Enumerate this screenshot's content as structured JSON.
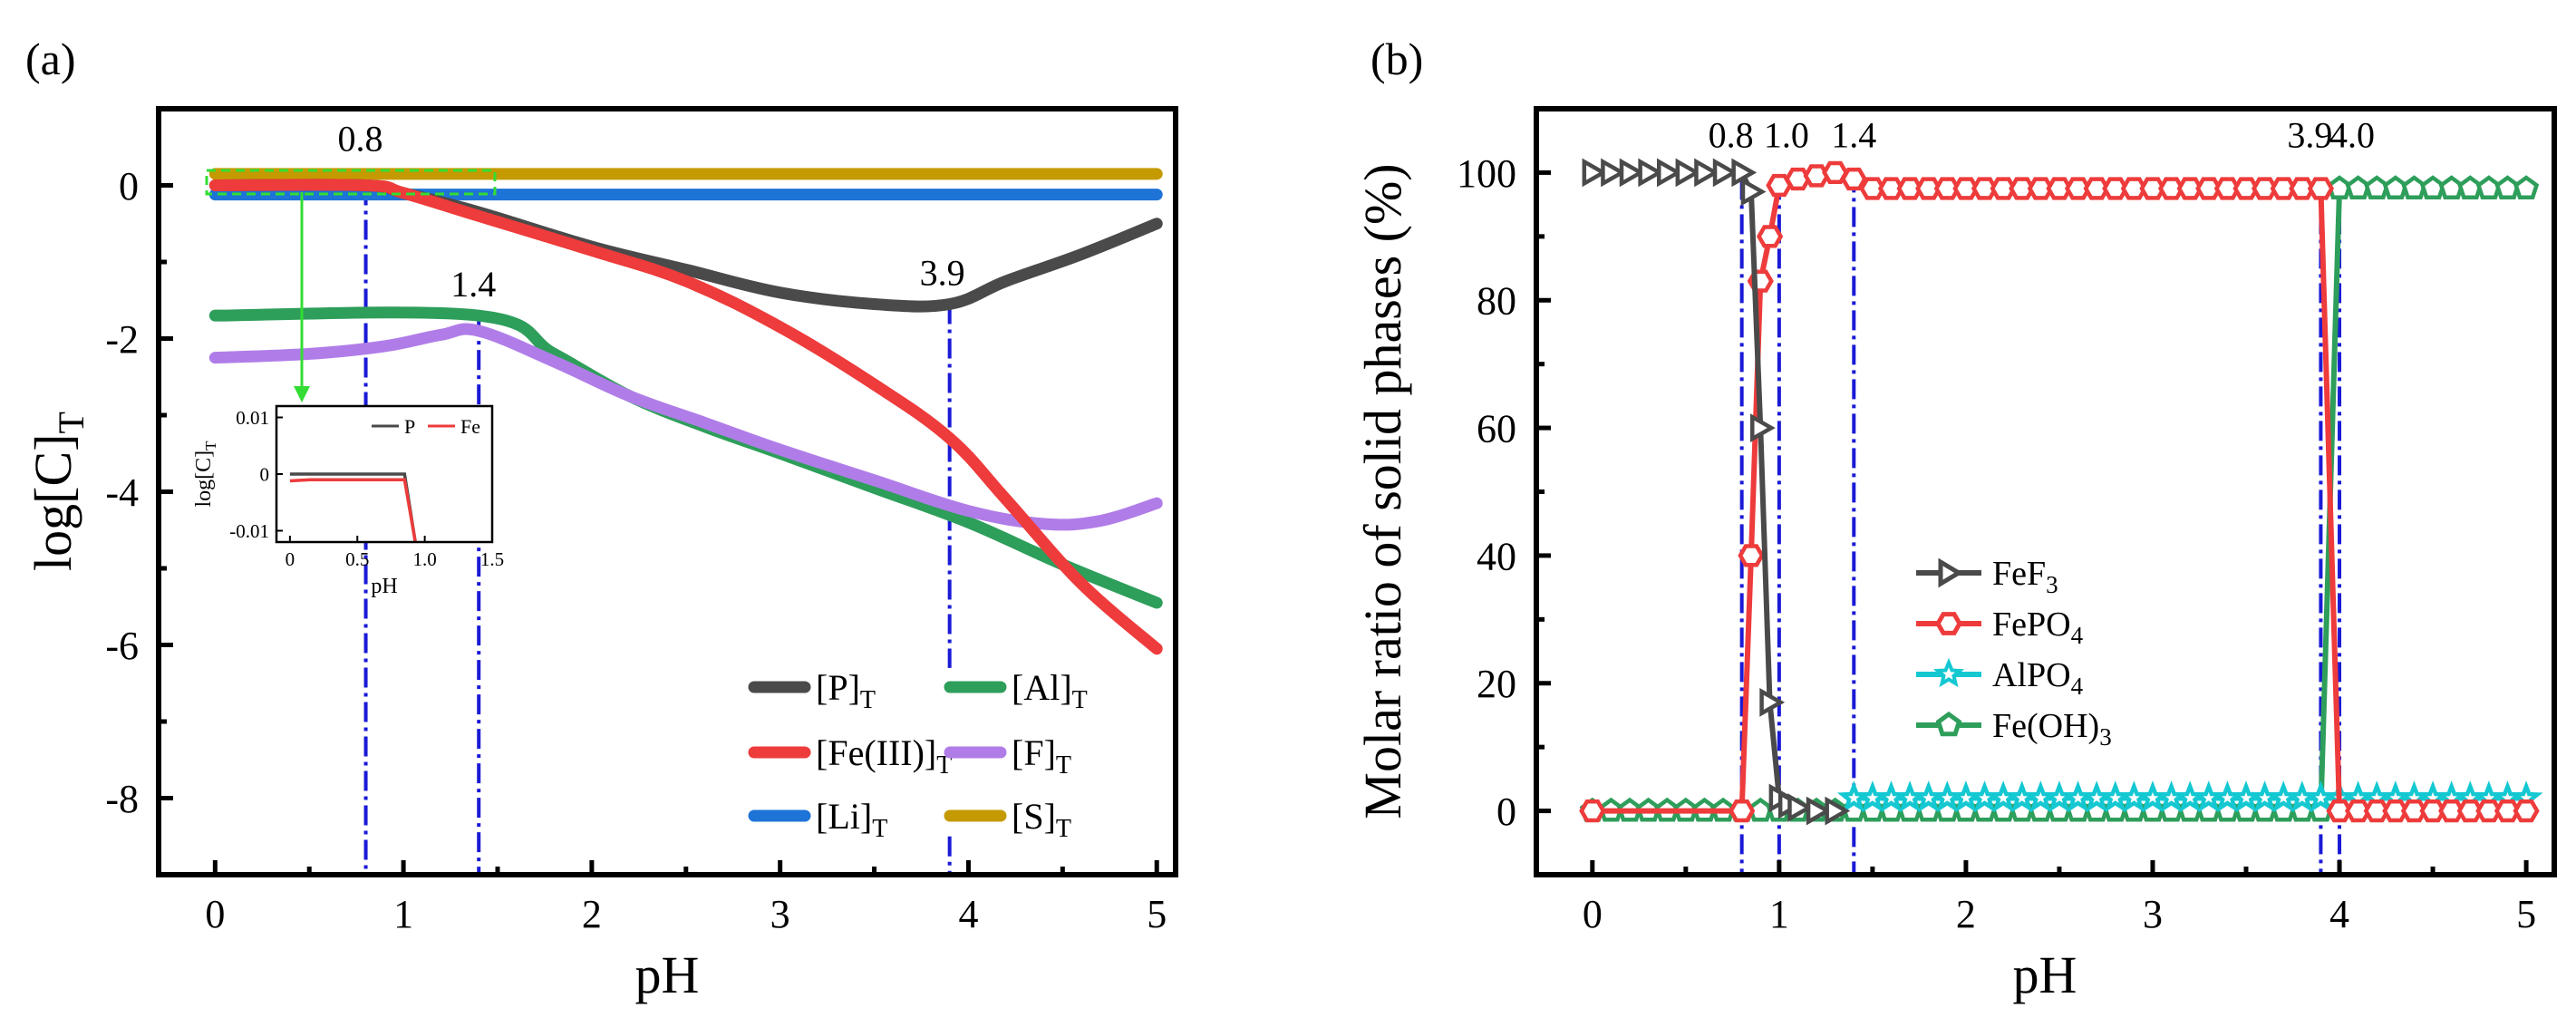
{
  "chart_data": [
    {
      "type": "line",
      "panel_label": "(a)",
      "xlabel": "pH",
      "ylabel": "log[C]",
      "ylabel_sub": "T",
      "xlim": [
        -0.3,
        5.1
      ],
      "ylim": [
        -9.0,
        1.0
      ],
      "xticks": [
        0,
        1,
        2,
        3,
        4,
        5
      ],
      "xtick_labels": [
        "0",
        "1",
        "2",
        "3",
        "4",
        "5"
      ],
      "yticks": [
        0,
        -2,
        -4,
        -6,
        -8
      ],
      "ytick_labels": [
        "0",
        "-2",
        "-4",
        "-6",
        "-8"
      ],
      "series": [
        {
          "name": "[P]",
          "sub": "T",
          "color": "#4a4a4a",
          "x": [
            0,
            0.8,
            1.0,
            1.4,
            2.0,
            2.5,
            3.0,
            3.5,
            3.9,
            4.2,
            4.6,
            5.0
          ],
          "y": [
            0,
            0,
            -0.1,
            -0.35,
            -0.8,
            -1.1,
            -1.4,
            -1.55,
            -1.55,
            -1.25,
            -0.9,
            -0.5
          ]
        },
        {
          "name": "[Fe(III)]",
          "sub": "T",
          "color": "#ee3b3b",
          "x": [
            0,
            0.8,
            1.0,
            1.4,
            2.0,
            2.5,
            3.0,
            3.5,
            3.9,
            4.2,
            4.6,
            5.0
          ],
          "y": [
            0,
            0,
            -0.1,
            -0.4,
            -0.85,
            -1.25,
            -1.85,
            -2.6,
            -3.3,
            -4.1,
            -5.2,
            -6.05
          ]
        },
        {
          "name": "[Li]",
          "sub": "T",
          "color": "#1e73d6",
          "x": [
            0,
            5.0
          ],
          "y": [
            -0.12,
            -0.12
          ]
        },
        {
          "name": "[Al]",
          "sub": "T",
          "color": "#2e9e5b",
          "x": [
            0,
            1.4,
            1.8,
            2.2,
            2.6,
            3.0,
            3.5,
            4.0,
            4.5,
            5.0
          ],
          "y": [
            -1.7,
            -1.7,
            -2.2,
            -2.75,
            -3.15,
            -3.5,
            -3.95,
            -4.4,
            -4.95,
            -5.45
          ]
        },
        {
          "name": "[F]",
          "sub": "T",
          "color": "#b07de8",
          "x": [
            0,
            0.5,
            0.9,
            1.2,
            1.4,
            1.8,
            2.2,
            2.6,
            3.0,
            3.5,
            4.0,
            4.4,
            4.7,
            5.0
          ],
          "y": [
            -2.25,
            -2.2,
            -2.1,
            -1.95,
            -1.9,
            -2.3,
            -2.75,
            -3.1,
            -3.45,
            -3.85,
            -4.25,
            -4.42,
            -4.38,
            -4.15
          ]
        },
        {
          "name": "[S]",
          "sub": "T",
          "color": "#c49a00",
          "x": [
            0,
            5.0
          ],
          "y": [
            0.15,
            0.15
          ]
        }
      ],
      "annotations": [
        {
          "text": "0.8",
          "x": 0.8
        },
        {
          "text": "1.4",
          "x": 1.4
        },
        {
          "text": "3.9",
          "x": 3.9
        }
      ],
      "inset": {
        "xlabel": "pH",
        "ylabel": "log[C]",
        "ylabel_sub": "T",
        "xlim": [
          -0.1,
          1.5
        ],
        "ylim": [
          -0.012,
          0.012
        ],
        "xticks": [
          0,
          0.5,
          1.0,
          1.5
        ],
        "xtick_labels": [
          "0",
          "0.5",
          "1.0",
          "1.5"
        ],
        "yticks": [
          0.01,
          0,
          -0.01
        ],
        "ytick_labels": [
          "0.01",
          "0",
          "-0.01"
        ],
        "series": [
          {
            "name": "P",
            "color": "#4a4a4a",
            "x": [
              0,
              0.85,
              0.93
            ],
            "y": [
              0,
              0,
              -0.012
            ]
          },
          {
            "name": "Fe",
            "color": "#ee3b3b",
            "x": [
              0,
              0.15,
              0.85,
              0.93
            ],
            "y": [
              -0.0012,
              -0.001,
              -0.001,
              -0.012
            ]
          }
        ]
      }
    },
    {
      "type": "line",
      "panel_label": "(b)",
      "xlabel": "pH",
      "ylabel": "Molar ratio of solid phases (%)",
      "xlim": [
        -0.3,
        5.15
      ],
      "ylim": [
        -10,
        110
      ],
      "xticks": [
        0,
        1,
        2,
        3,
        4,
        5
      ],
      "xtick_labels": [
        "0",
        "1",
        "2",
        "3",
        "4",
        "5"
      ],
      "yticks": [
        0,
        20,
        40,
        60,
        80,
        100
      ],
      "ytick_labels": [
        "0",
        "20",
        "40",
        "60",
        "80",
        "100"
      ],
      "series": [
        {
          "name": "FeF",
          "sub": "3",
          "color": "#4a4a4a",
          "marker": "triangle-right",
          "x": [
            0,
            0.1,
            0.2,
            0.3,
            0.4,
            0.5,
            0.6,
            0.7,
            0.8,
            0.85,
            0.9,
            0.95,
            1.0,
            1.05,
            1.1,
            1.2,
            1.3
          ],
          "y": [
            100,
            100,
            100,
            100,
            100,
            100,
            100,
            100,
            100,
            97,
            60,
            17,
            2,
            1,
            0.5,
            0,
            0
          ]
        },
        {
          "name": "FePO",
          "sub": "4",
          "color": "#ee3b3b",
          "marker": "hexagon",
          "x": [
            0,
            0.8,
            0.85,
            0.9,
            0.95,
            1.0,
            1.1,
            1.2,
            1.3,
            1.4,
            1.5,
            1.6,
            1.7,
            1.8,
            1.9,
            2.0,
            2.1,
            2.2,
            2.3,
            2.4,
            2.5,
            2.6,
            2.7,
            2.8,
            2.9,
            3.0,
            3.1,
            3.2,
            3.3,
            3.4,
            3.5,
            3.6,
            3.7,
            3.8,
            3.9,
            4.0,
            4.1,
            4.2,
            4.3,
            4.4,
            4.5,
            4.6,
            4.7,
            4.8,
            4.9,
            5.0
          ],
          "y": [
            0,
            0,
            40,
            83,
            90,
            98,
            99,
            99.5,
            100,
            99,
            97.5,
            97.5,
            97.5,
            97.5,
            97.5,
            97.5,
            97.5,
            97.5,
            97.5,
            97.5,
            97.5,
            97.5,
            97.5,
            97.5,
            97.5,
            97.5,
            97.5,
            97.5,
            97.5,
            97.5,
            97.5,
            97.5,
            97.5,
            97.5,
            97.5,
            0,
            0,
            0,
            0,
            0,
            0,
            0,
            0,
            0,
            0,
            0
          ]
        },
        {
          "name": "AlPO",
          "sub": "4",
          "color": "#14c8d2",
          "marker": "star",
          "x": [
            1.4,
            1.5,
            1.6,
            1.7,
            1.8,
            1.9,
            2.0,
            2.1,
            2.2,
            2.3,
            2.4,
            2.5,
            2.6,
            2.7,
            2.8,
            2.9,
            3.0,
            3.1,
            3.2,
            3.3,
            3.4,
            3.5,
            3.6,
            3.7,
            3.8,
            3.9,
            4.0,
            4.1,
            4.2,
            4.3,
            4.4,
            4.5,
            4.6,
            4.7,
            4.8,
            4.9,
            5.0
          ],
          "y": [
            2,
            2,
            2,
            2,
            2,
            2,
            2,
            2,
            2,
            2,
            2,
            2,
            2,
            2,
            2,
            2,
            2,
            2,
            2,
            2,
            2,
            2,
            2,
            2,
            2,
            2,
            2,
            2,
            2,
            2,
            2,
            2,
            2,
            2,
            2,
            2,
            2
          ]
        },
        {
          "name": "Fe(OH)",
          "sub": "3",
          "color": "#2e9e5b",
          "marker": "pentagon",
          "x": [
            0,
            0.1,
            0.2,
            0.3,
            0.4,
            0.5,
            0.6,
            0.7,
            0.8,
            0.9,
            1.0,
            1.1,
            1.2,
            1.3,
            1.4,
            1.5,
            1.6,
            1.7,
            1.8,
            1.9,
            2.0,
            2.1,
            2.2,
            2.3,
            2.4,
            2.5,
            2.6,
            2.7,
            2.8,
            2.9,
            3.0,
            3.1,
            3.2,
            3.3,
            3.4,
            3.5,
            3.6,
            3.7,
            3.8,
            3.9,
            4.0,
            4.1,
            4.2,
            4.3,
            4.4,
            4.5,
            4.6,
            4.7,
            4.8,
            4.9,
            5.0
          ],
          "y": [
            0,
            0,
            0,
            0,
            0,
            0,
            0,
            0,
            0,
            0,
            0,
            0,
            0,
            0,
            0,
            0,
            0,
            0,
            0,
            0,
            0,
            0,
            0,
            0,
            0,
            0,
            0,
            0,
            0,
            0,
            0,
            0,
            0,
            0,
            0,
            0,
            0,
            0,
            0,
            0,
            97.5,
            97.5,
            97.5,
            97.5,
            97.5,
            97.5,
            97.5,
            97.5,
            97.5,
            97.5,
            97.5
          ]
        }
      ],
      "annotations": [
        {
          "text": "0.8",
          "x": 0.8
        },
        {
          "text": "1.0",
          "x": 1.0
        },
        {
          "text": "1.4",
          "x": 1.4
        },
        {
          "text": "3.9",
          "x": 3.9
        },
        {
          "text": "4.0",
          "x": 4.0
        }
      ]
    }
  ]
}
